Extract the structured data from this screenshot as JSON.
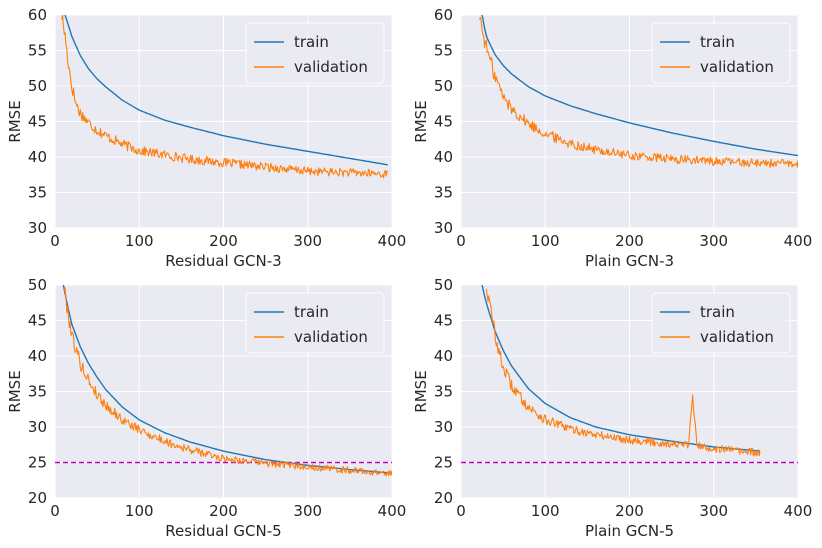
{
  "colors": {
    "train": "#1f77b4",
    "validation": "#ff7f0e",
    "threshold": "#bf00bf",
    "panel_bg": "#eaeaf2",
    "grid": "#ffffff"
  },
  "chart_data": [
    {
      "type": "line",
      "xlabel": "Residual GCN-3",
      "ylabel": "RMSE",
      "xlim": [
        0,
        400
      ],
      "ylim": [
        30,
        60
      ],
      "xticks": [
        0,
        100,
        200,
        300,
        400
      ],
      "yticks": [
        30,
        35,
        40,
        45,
        50,
        55,
        60
      ],
      "legend": {
        "position": "top-right",
        "entries": [
          "train",
          "validation"
        ]
      },
      "series": [
        {
          "name": "train",
          "x": [
            12,
            20,
            30,
            40,
            50,
            60,
            80,
            100,
            130,
            160,
            200,
            250,
            300,
            350,
            395
          ],
          "y": [
            60,
            57,
            54.3,
            52.4,
            51.0,
            49.9,
            48.0,
            46.6,
            45.2,
            44.2,
            43.0,
            41.8,
            40.8,
            39.8,
            38.9
          ]
        },
        {
          "name": "validation",
          "x": [
            8,
            12,
            15,
            20,
            25,
            30,
            40,
            50,
            60,
            80,
            100,
            130,
            160,
            200,
            250,
            300,
            350,
            395
          ],
          "y": [
            60,
            57,
            54,
            50,
            47.5,
            46.2,
            44.8,
            43.8,
            43.0,
            41.8,
            40.9,
            40.3,
            39.7,
            39.2,
            38.6,
            38.0,
            37.8,
            37.6
          ]
        }
      ]
    },
    {
      "type": "line",
      "xlabel": "Plain GCN-3",
      "ylabel": "RMSE",
      "xlim": [
        0,
        400
      ],
      "ylim": [
        30,
        60
      ],
      "xticks": [
        0,
        100,
        200,
        300,
        400
      ],
      "yticks": [
        30,
        35,
        40,
        45,
        50,
        55,
        60
      ],
      "legend": {
        "position": "top-right",
        "entries": [
          "train",
          "validation"
        ]
      },
      "series": [
        {
          "name": "train",
          "x": [
            25,
            30,
            40,
            50,
            60,
            80,
            100,
            130,
            160,
            200,
            250,
            300,
            350,
            400
          ],
          "y": [
            60,
            57,
            54.5,
            52.9,
            51.7,
            49.9,
            48.6,
            47.2,
            46.1,
            44.8,
            43.4,
            42.2,
            41.1,
            40.2
          ]
        },
        {
          "name": "validation",
          "x": [
            22,
            25,
            30,
            35,
            40,
            50,
            60,
            80,
            100,
            130,
            160,
            200,
            250,
            300,
            350,
            400
          ],
          "y": [
            60,
            58,
            55.5,
            53.5,
            51.5,
            48.5,
            46.8,
            44.7,
            43.3,
            41.9,
            41.0,
            40.2,
            39.7,
            39.4,
            39.2,
            39.0
          ]
        }
      ]
    },
    {
      "type": "line",
      "xlabel": "Residual GCN-5",
      "ylabel": "RMSE",
      "xlim": [
        0,
        400
      ],
      "ylim": [
        20,
        50
      ],
      "xticks": [
        0,
        100,
        200,
        300,
        400
      ],
      "yticks": [
        20,
        25,
        30,
        35,
        40,
        45,
        50
      ],
      "threshold": 25,
      "legend": {
        "position": "top-right",
        "entries": [
          "train",
          "validation"
        ]
      },
      "series": [
        {
          "name": "train",
          "x": [
            10,
            15,
            20,
            30,
            40,
            50,
            60,
            80,
            100,
            130,
            160,
            200,
            250,
            300,
            350,
            400
          ],
          "y": [
            50,
            47,
            44.5,
            41.3,
            38.9,
            37.0,
            35.3,
            32.8,
            31.0,
            29.2,
            27.9,
            26.6,
            25.4,
            24.6,
            24.0,
            23.5
          ]
        },
        {
          "name": "validation",
          "x": [
            10,
            15,
            20,
            30,
            40,
            50,
            60,
            80,
            100,
            130,
            160,
            200,
            250,
            300,
            350,
            400
          ],
          "y": [
            50,
            46.5,
            43.0,
            39.0,
            36.5,
            34.6,
            33.1,
            31.0,
            29.6,
            28.0,
            26.8,
            25.6,
            24.9,
            24.4,
            23.9,
            23.4
          ]
        }
      ]
    },
    {
      "type": "line",
      "xlabel": "Plain GCN-5",
      "ylabel": "RMSE",
      "xlim": [
        0,
        400
      ],
      "ylim": [
        20,
        50
      ],
      "xticks": [
        0,
        100,
        200,
        300,
        400
      ],
      "yticks": [
        20,
        25,
        30,
        35,
        40,
        45,
        50
      ],
      "threshold": 25,
      "legend": {
        "position": "top-right",
        "entries": [
          "train",
          "validation"
        ]
      },
      "series": [
        {
          "name": "train",
          "x": [
            25,
            30,
            40,
            50,
            60,
            80,
            100,
            130,
            160,
            200,
            250,
            300,
            355
          ],
          "y": [
            50,
            47.5,
            43.6,
            40.8,
            38.6,
            35.4,
            33.3,
            31.3,
            30.0,
            28.9,
            28.0,
            27.2,
            26.6
          ]
        },
        {
          "name": "validation",
          "x": [
            30,
            35,
            40,
            45,
            50,
            60,
            80,
            100,
            130,
            160,
            200,
            250,
            270,
            275,
            280,
            300,
            330,
            355
          ],
          "y": [
            50,
            46.5,
            43.5,
            40.5,
            38.5,
            35.8,
            32.8,
            31.0,
            29.7,
            28.9,
            28.2,
            27.6,
            27.4,
            34.5,
            27.3,
            27.0,
            26.6,
            26.3
          ]
        }
      ]
    }
  ]
}
